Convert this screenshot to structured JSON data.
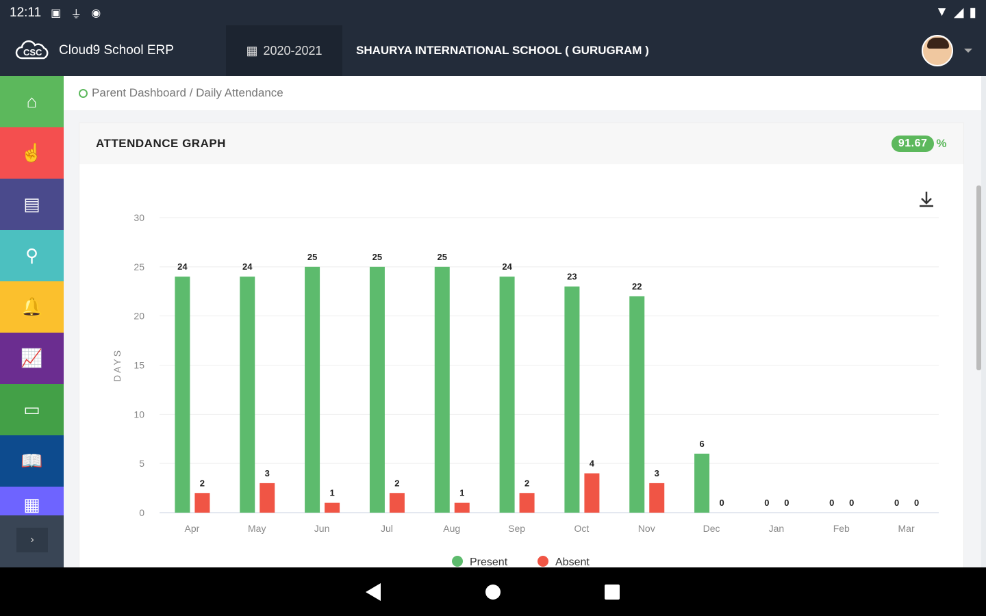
{
  "status": {
    "time": "12:11"
  },
  "header": {
    "app_name": "Cloud9 School ERP",
    "year": "2020-2021",
    "school": "SHAURYA INTERNATIONAL SCHOOL ( GURUGRAM )"
  },
  "sidebar": {
    "items": [
      {
        "name": "home",
        "icon": "⌂",
        "color": "#5cb85c"
      },
      {
        "name": "attendance",
        "icon": "☝",
        "color": "#f44f4f"
      },
      {
        "name": "document",
        "icon": "▤",
        "color": "#4a4a8c"
      },
      {
        "name": "pin",
        "icon": "⚲",
        "color": "#4cc0c0"
      },
      {
        "name": "notifications",
        "icon": "🔔",
        "color": "#fbc02d"
      },
      {
        "name": "reports",
        "icon": "📈",
        "color": "#6b2d90"
      },
      {
        "name": "fees",
        "icon": "▭",
        "color": "#43a047"
      },
      {
        "name": "books",
        "icon": "📖",
        "color": "#0d4b8e"
      },
      {
        "name": "timetable",
        "icon": "▦",
        "color": "#6e64ff"
      }
    ],
    "expand": "›"
  },
  "breadcrumb": "Parent Dashboard / Daily Attendance",
  "card": {
    "title": "ATTENDANCE GRAPH",
    "percentage": "91.67",
    "percent_sign": "%"
  },
  "colors": {
    "present": "#5dbb6d",
    "absent": "#f05545"
  },
  "chart_data": {
    "type": "bar",
    "categories": [
      "Apr",
      "May",
      "Jun",
      "Jul",
      "Aug",
      "Sep",
      "Oct",
      "Nov",
      "Dec",
      "Jan",
      "Feb",
      "Mar"
    ],
    "series": [
      {
        "name": "Present",
        "values": [
          24,
          24,
          25,
          25,
          25,
          24,
          23,
          22,
          6,
          0,
          0,
          0
        ]
      },
      {
        "name": "Absent",
        "values": [
          2,
          3,
          1,
          2,
          1,
          2,
          4,
          3,
          0,
          0,
          0,
          0
        ]
      }
    ],
    "ylabel": "DAYS",
    "ylim": [
      0,
      30
    ],
    "yticks": [
      0,
      5,
      10,
      15,
      20,
      25,
      30
    ],
    "legend": "bottom",
    "grid": true
  }
}
